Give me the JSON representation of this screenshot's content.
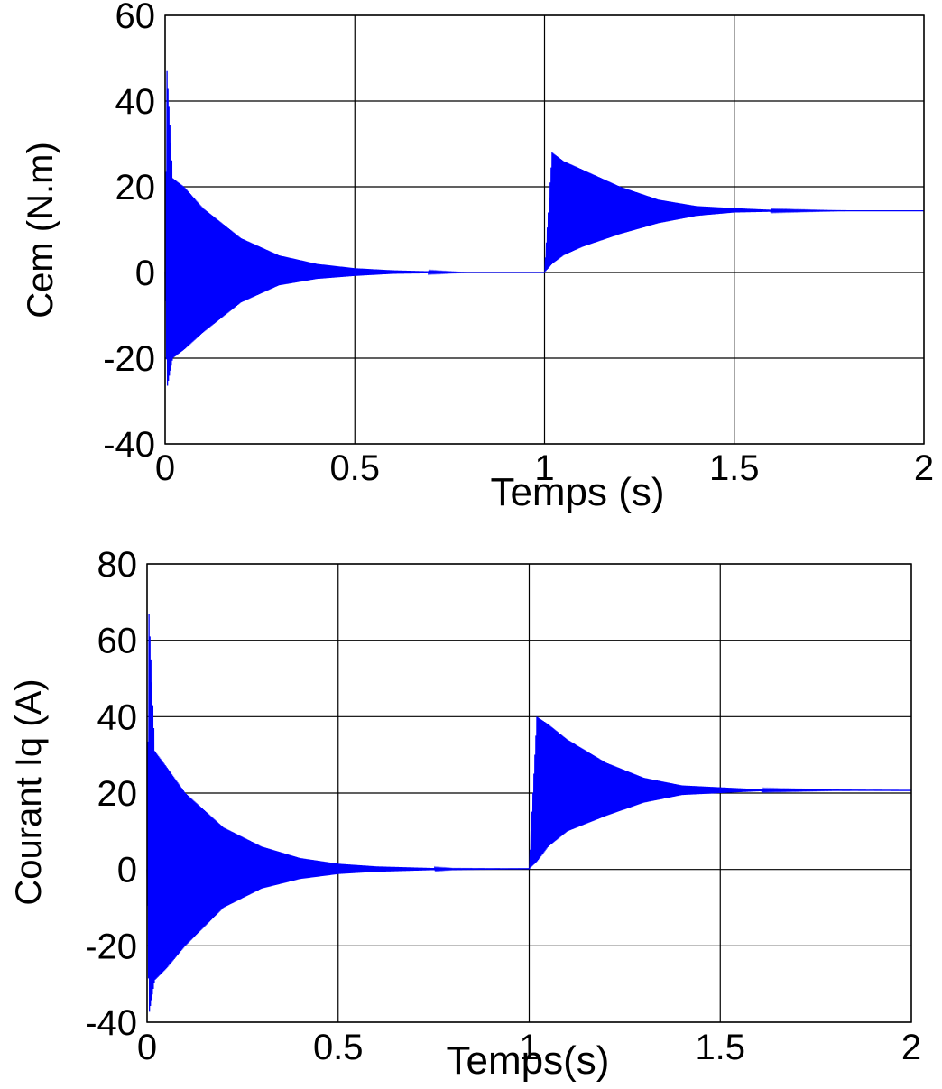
{
  "chart_data": [
    {
      "type": "line",
      "xlabel": "Temps (s)",
      "ylabel": "Cem (N.m)",
      "xlim": [
        0,
        2
      ],
      "ylim": [
        -40,
        60
      ],
      "xticks": [
        "0",
        "0.5",
        "1",
        "1.5",
        "2"
      ],
      "yticks": [
        "-40",
        "-20",
        "0",
        "20",
        "40",
        "60"
      ],
      "grid": true,
      "color": "#0000ff",
      "series": [
        {
          "x": [
            0,
            0.005,
            0.02,
            0.05,
            0.1,
            0.2,
            0.3,
            0.4,
            0.5,
            0.6,
            0.8,
            1.0,
            1.02,
            1.05,
            1.1,
            1.2,
            1.3,
            1.4,
            1.5,
            1.6,
            1.8,
            2.0
          ],
          "envelope_upper": [
            0,
            47,
            22,
            20,
            15,
            8,
            4,
            2,
            1,
            0.5,
            0,
            0,
            28,
            26,
            24,
            20,
            17,
            15.5,
            15,
            14.6,
            14.4,
            14.4
          ],
          "envelope_lower": [
            0,
            -27,
            -20,
            -18,
            -14,
            -7,
            -3,
            -1.5,
            -0.8,
            -0.3,
            0,
            0,
            2,
            4,
            6,
            9,
            11.5,
            13.2,
            14,
            14.2,
            14.4,
            14.4
          ]
        }
      ]
    },
    {
      "type": "line",
      "xlabel": "Temps(s)",
      "ylabel": "Courant Iq (A)",
      "xlim": [
        0,
        2
      ],
      "ylim": [
        -40,
        80
      ],
      "xticks": [
        "0",
        "0.5",
        "1",
        "1.5",
        "2"
      ],
      "yticks": [
        "-40",
        "-20",
        "0",
        "20",
        "40",
        "60",
        "80"
      ],
      "grid": true,
      "color": "#0000ff",
      "series": [
        {
          "x": [
            0,
            0.005,
            0.02,
            0.05,
            0.1,
            0.2,
            0.3,
            0.4,
            0.5,
            0.6,
            0.8,
            1.0,
            1.02,
            1.05,
            1.1,
            1.2,
            1.3,
            1.4,
            1.5,
            1.6,
            1.8,
            2.0
          ],
          "envelope_upper": [
            0,
            67,
            31,
            27,
            20,
            11,
            6,
            3,
            1.5,
            0.8,
            0.2,
            0.2,
            40,
            38,
            34,
            28,
            24,
            22,
            21.5,
            21,
            20.8,
            20.7
          ],
          "envelope_lower": [
            0,
            -38,
            -29,
            -26,
            -20,
            -10,
            -5,
            -2.5,
            -1.2,
            -0.6,
            0,
            0.2,
            2,
            6,
            10,
            14,
            17.5,
            19.5,
            20,
            20.5,
            20.7,
            20.7
          ]
        }
      ]
    }
  ]
}
